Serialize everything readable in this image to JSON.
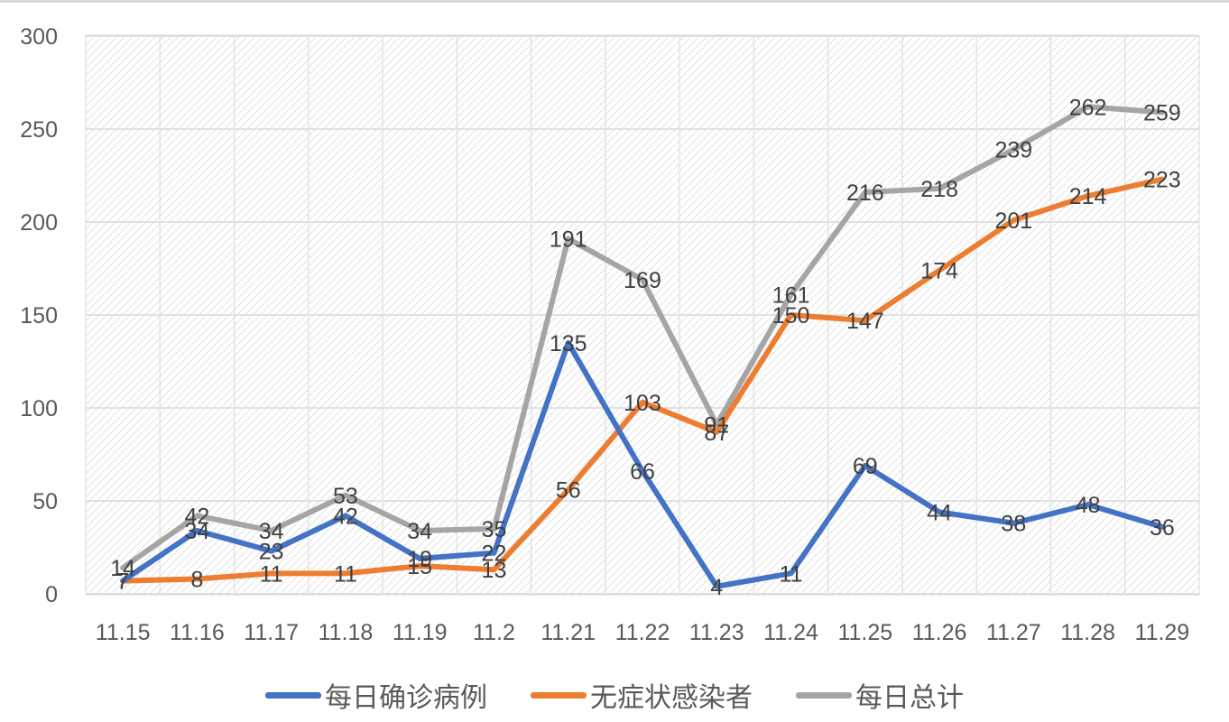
{
  "chart_data": {
    "type": "line",
    "title": "",
    "xlabel": "",
    "ylabel": "",
    "ylim": [
      0,
      300
    ],
    "yticks": [
      0,
      50,
      100,
      150,
      200,
      250,
      300
    ],
    "grid": true,
    "legend_position": "bottom",
    "categories": [
      "11.15",
      "11.16",
      "11.17",
      "11.18",
      "11.19",
      "11.2",
      "11.21",
      "11.22",
      "11.23",
      "11.24",
      "11.25",
      "11.26",
      "11.27",
      "11.28",
      "11.29"
    ],
    "series": [
      {
        "name": "每日确诊病例",
        "color": "#4472c4",
        "values": [
          7,
          34,
          23,
          42,
          19,
          22,
          135,
          66,
          4,
          11,
          69,
          44,
          38,
          48,
          36
        ]
      },
      {
        "name": "无症状感染者",
        "color": "#ed7d31",
        "values": [
          7,
          8,
          11,
          11,
          15,
          13,
          56,
          103,
          87,
          150,
          147,
          174,
          201,
          214,
          223
        ]
      },
      {
        "name": "每日总计",
        "color": "#a5a5a5",
        "values": [
          14,
          42,
          34,
          53,
          34,
          35,
          191,
          169,
          91,
          161,
          216,
          218,
          239,
          262,
          259
        ]
      }
    ]
  }
}
